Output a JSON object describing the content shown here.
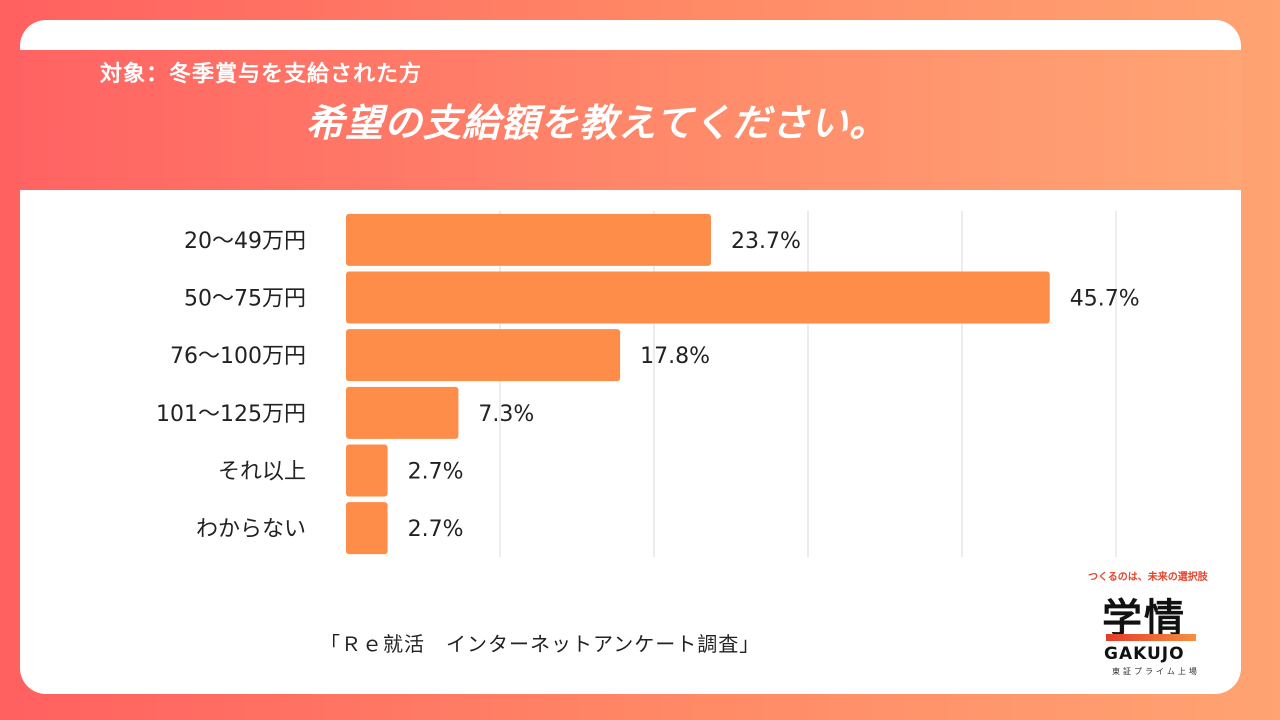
{
  "header": {
    "subtitle": "対象：冬季賞与を支給された方",
    "title": "希望の支給額を教えてください。"
  },
  "chart_data": {
    "type": "bar",
    "orientation": "horizontal",
    "categories": [
      "20～49万円",
      "50～75万円",
      "76～100万円",
      "101～125万円",
      "それ以上",
      "わからない"
    ],
    "values": [
      23.7,
      45.7,
      17.8,
      7.3,
      2.7,
      2.7
    ],
    "value_labels": [
      "23.7%",
      "45.7%",
      "17.8%",
      "7.3%",
      "2.7%",
      "2.7%"
    ],
    "unit": "%",
    "xlim": [
      0,
      50
    ],
    "gridlines": [
      10,
      20,
      30,
      40,
      50
    ],
    "bar_color": "#ff8d4a",
    "grid": true,
    "legend": "none"
  },
  "footer": {
    "source": "「Ｒｅ就活　インターネットアンケート調査」"
  },
  "logo": {
    "tagline": "つくるのは、未来の選択肢",
    "name_ja": "学情",
    "name_en": "GAKUJO",
    "sub": "東証プライム上場"
  }
}
